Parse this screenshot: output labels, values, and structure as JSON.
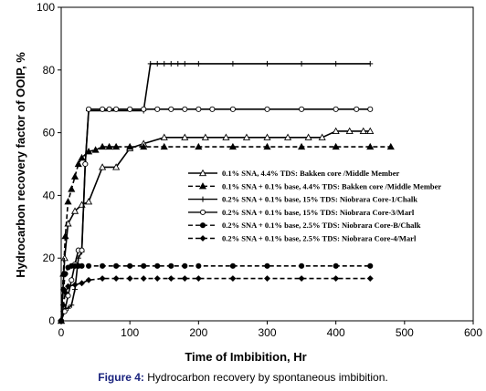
{
  "caption": {
    "label": "Figure 4:",
    "text": "Hydrocarbon recovery by spontaneous imbibition."
  },
  "chart_data": {
    "type": "line",
    "title": "",
    "xlabel": "Time of Imbibition, Hr",
    "ylabel": "Hydrocarbon recovery factor of OOIP, %",
    "xlim": [
      0,
      600
    ],
    "ylim": [
      0,
      100
    ],
    "xticks": [
      0,
      100,
      200,
      300,
      400,
      500,
      600
    ],
    "yticks": [
      0,
      20,
      40,
      60,
      80,
      100
    ],
    "grid": false,
    "legend_position": "center-right",
    "series": [
      {
        "name": "0.1% SNA, 4.4% TDS: Bakken core /Middle Member",
        "marker": "triangle-open",
        "dash": "solid",
        "x": [
          0,
          5,
          10,
          20,
          30,
          40,
          60,
          80,
          100,
          120,
          150,
          180,
          210,
          240,
          270,
          300,
          330,
          360,
          380,
          400,
          420,
          440,
          450
        ],
        "y": [
          0,
          20,
          31,
          35,
          37,
          38,
          49,
          49,
          55,
          56.5,
          58.5,
          58.5,
          58.5,
          58.5,
          58.5,
          58.5,
          58.5,
          58.5,
          58.5,
          60.5,
          60.5,
          60.5,
          60.5
        ]
      },
      {
        "name": "0.1% SNA + 0.1% base, 4.4% TDS: Bakken core /Middle Member",
        "marker": "triangle-filled",
        "dash": "dash",
        "x": [
          0,
          3,
          6,
          10,
          15,
          20,
          25,
          30,
          40,
          50,
          60,
          70,
          80,
          100,
          120,
          150,
          200,
          250,
          300,
          350,
          400,
          450,
          480
        ],
        "y": [
          0,
          15,
          27,
          38,
          42,
          46,
          50,
          52,
          54,
          54.5,
          55.5,
          55.5,
          55.5,
          55.5,
          55.5,
          55.5,
          55.5,
          55.5,
          55.5,
          55.5,
          55.5,
          55.5,
          55.5
        ]
      },
      {
        "name": "0.2% SNA + 0.1% base, 15% TDS: Niobrara Core-1/Chalk",
        "marker": "cross",
        "dash": "solid",
        "x": [
          0,
          3,
          6,
          10,
          15,
          20,
          25,
          30,
          35,
          40,
          120,
          130,
          140,
          150,
          160,
          170,
          180,
          200,
          250,
          300,
          350,
          400,
          450
        ],
        "y": [
          0,
          3,
          4,
          4,
          5,
          10,
          20,
          22,
          50,
          67,
          67,
          82,
          82,
          82,
          82,
          82,
          82,
          82,
          82,
          82,
          82,
          82,
          82
        ]
      },
      {
        "name": "0.2% SNA + 0.1% base, 15% TDS: Niobrara Core-3/Marl",
        "marker": "circle-open",
        "dash": "solid",
        "x": [
          0,
          5,
          10,
          15,
          20,
          25,
          30,
          35,
          40,
          60,
          70,
          80,
          100,
          120,
          140,
          160,
          180,
          200,
          220,
          250,
          300,
          350,
          400,
          430,
          450
        ],
        "y": [
          0,
          3,
          8,
          13,
          18,
          22.5,
          22.5,
          50,
          67.5,
          67.5,
          67.5,
          67.5,
          67.5,
          67.5,
          67.5,
          67.5,
          67.5,
          67.5,
          67.5,
          67.5,
          67.5,
          67.5,
          67.5,
          67.5,
          67.5
        ]
      },
      {
        "name": "0.2% SNA + 0.1% base, 2.5% TDS: Niobrara Core-B/Chalk",
        "marker": "circle-filled",
        "dash": "dash",
        "x": [
          0,
          3,
          6,
          10,
          15,
          20,
          25,
          30,
          40,
          60,
          80,
          100,
          120,
          140,
          160,
          180,
          200,
          250,
          300,
          350,
          400,
          450
        ],
        "y": [
          0,
          10,
          15,
          17,
          17.5,
          17.5,
          17.5,
          17.5,
          17.5,
          17.5,
          17.5,
          17.5,
          17.5,
          17.5,
          17.5,
          17.5,
          17.5,
          17.5,
          17.5,
          17.5,
          17.5,
          17.5
        ]
      },
      {
        "name": "0.2% SNA + 0.1% base, 2.5% TDS: Niobrara Core-4/Marl",
        "marker": "diamond-filled",
        "dash": "dash",
        "x": [
          0,
          3,
          6,
          10,
          20,
          30,
          40,
          60,
          80,
          100,
          120,
          140,
          160,
          180,
          200,
          250,
          300,
          350,
          400,
          450
        ],
        "y": [
          0,
          5,
          9,
          11,
          11.5,
          12,
          13,
          13.5,
          13.5,
          13.5,
          13.5,
          13.5,
          13.5,
          13.5,
          13.5,
          13.5,
          13.5,
          13.5,
          13.5,
          13.5
        ]
      }
    ]
  }
}
